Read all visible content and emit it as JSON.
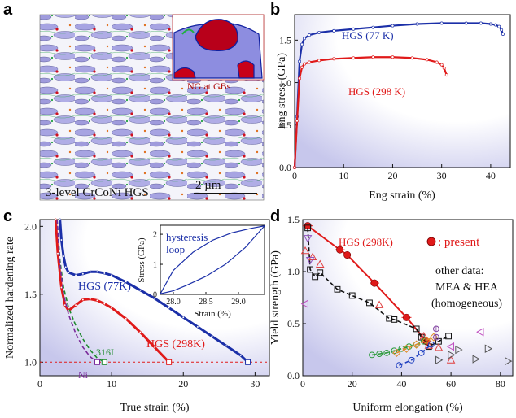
{
  "panels": {
    "a": {
      "label": "a",
      "caption": "3-level CrCoNi HGS",
      "scalebar_label": "2 µm",
      "inset_label": "NG at GBs",
      "colors": {
        "matrix": "#a9a6e2",
        "inset_bg": "#8f8fe0",
        "grain_red": "#c00010",
        "bg": "#f6f6fb"
      }
    },
    "b": {
      "label": "b"
    },
    "c": {
      "label": "c",
      "inset": {
        "label_line1": "hysteresis",
        "label_line2": "loop"
      }
    },
    "d": {
      "label": "d",
      "legend_present": ": present",
      "other_line1": "other data:",
      "other_line2": "MEA & HEA",
      "other_line3": "(homogeneous)"
    }
  },
  "colors": {
    "blue": "#1b2fa8",
    "red": "#e01a1a",
    "bg_fade": "#c9c9ec"
  },
  "chart_data": [
    {
      "id": "b",
      "type": "line",
      "title": "",
      "xlabel": "Eng strain (%)",
      "ylabel": "Eng stress (GPa)",
      "xlim": [
        0,
        44
      ],
      "ylim": [
        0,
        1.8
      ],
      "xticks": [
        0,
        10,
        20,
        30,
        40
      ],
      "yticks": [
        0.0,
        0.5,
        1.0,
        1.5
      ],
      "grid": false,
      "series": [
        {
          "name": "HGS (77 K)",
          "color": "#1b2fa8",
          "x": [
            0,
            0.5,
            1.0,
            1.5,
            2.0,
            3,
            5,
            8,
            12,
            16,
            20,
            25,
            30,
            35,
            38,
            40,
            41,
            41.7,
            42.2,
            42.5
          ],
          "y": [
            0,
            0.6,
            1.25,
            1.45,
            1.52,
            1.56,
            1.59,
            1.61,
            1.63,
            1.65,
            1.67,
            1.69,
            1.7,
            1.7,
            1.7,
            1.69,
            1.68,
            1.66,
            1.62,
            1.57
          ]
        },
        {
          "name": "HGS (298 K)",
          "color": "#e01a1a",
          "x": [
            0,
            0.5,
            1.0,
            1.5,
            2,
            3,
            5,
            8,
            12,
            16,
            20,
            24,
            27,
            29,
            30,
            30.5,
            31
          ],
          "y": [
            0,
            0.55,
            1.05,
            1.18,
            1.22,
            1.24,
            1.26,
            1.28,
            1.29,
            1.3,
            1.3,
            1.29,
            1.27,
            1.24,
            1.21,
            1.17,
            1.09
          ]
        }
      ]
    },
    {
      "id": "c",
      "type": "line",
      "title": "",
      "xlabel": "True strain (%)",
      "ylabel": "Normalized hardening rate",
      "xlim": [
        0,
        32
      ],
      "ylim": [
        0.9,
        2.05
      ],
      "xticks": [
        0,
        10,
        20,
        30
      ],
      "yticks": [
        1.0,
        1.5,
        2.0
      ],
      "reference_line": {
        "y": 1.0,
        "color": "#e01a1a"
      },
      "series": [
        {
          "name": "HGS (77K)",
          "color": "#1b2fa8",
          "x": [
            2.8,
            3.0,
            3.3,
            3.6,
            4.0,
            5,
            6,
            7,
            8,
            9,
            10,
            12,
            14,
            16,
            18,
            20,
            22,
            24,
            26,
            28,
            29
          ],
          "y": [
            2.05,
            1.9,
            1.78,
            1.7,
            1.66,
            1.64,
            1.65,
            1.665,
            1.665,
            1.655,
            1.64,
            1.59,
            1.53,
            1.47,
            1.4,
            1.33,
            1.26,
            1.19,
            1.12,
            1.05,
            1.0
          ]
        },
        {
          "name": "HGS (298K)",
          "color": "#e01a1a",
          "x": [
            2.2,
            2.5,
            3.0,
            3.5,
            4,
            5,
            6,
            7,
            8,
            9,
            10,
            12,
            14,
            16,
            18
          ],
          "y": [
            2.05,
            1.8,
            1.55,
            1.42,
            1.38,
            1.42,
            1.46,
            1.465,
            1.455,
            1.43,
            1.4,
            1.32,
            1.22,
            1.11,
            1.0
          ]
        },
        {
          "name": "316L",
          "color": "#1e8a2e",
          "dashed": true,
          "x": [
            2.4,
            2.8,
            3.3,
            4,
            5,
            6,
            7,
            8,
            9
          ],
          "y": [
            2.05,
            1.75,
            1.55,
            1.4,
            1.27,
            1.17,
            1.09,
            1.03,
            1.0
          ]
        },
        {
          "name": "Ni",
          "color": "#7a2a9a",
          "dashed": true,
          "x": [
            2.4,
            2.8,
            3.3,
            4,
            5,
            6,
            7,
            8
          ],
          "y": [
            2.05,
            1.72,
            1.5,
            1.35,
            1.21,
            1.11,
            1.04,
            1.0
          ]
        }
      ]
    },
    {
      "id": "c_inset",
      "type": "line",
      "title": "",
      "xlabel": "Strain (%)",
      "ylabel": "Stress (GPa)",
      "xlim": [
        27.8,
        29.4
      ],
      "ylim": [
        0,
        2.3
      ],
      "xticks": [
        28.0,
        28.5,
        29.0
      ],
      "yticks": [
        0,
        1,
        2
      ],
      "series": [
        {
          "name": "loading",
          "color": "#1b2fa8",
          "x": [
            27.8,
            28.0,
            28.3,
            28.6,
            28.9,
            29.2,
            29.4
          ],
          "y": [
            0.02,
            0.8,
            1.4,
            1.8,
            2.05,
            2.2,
            2.28
          ]
        },
        {
          "name": "unloading",
          "color": "#1b2fa8",
          "x": [
            29.4,
            29.1,
            28.8,
            28.5,
            28.2,
            28.0,
            27.8
          ],
          "y": [
            2.28,
            1.55,
            1.0,
            0.6,
            0.3,
            0.12,
            0.02
          ]
        }
      ]
    },
    {
      "id": "d",
      "type": "scatter",
      "title": "",
      "xlabel": "Uniform elongation (%)",
      "ylabel": "Yield strength (GPa)",
      "xlim": [
        0,
        85
      ],
      "ylim": [
        0,
        1.5
      ],
      "xticks": [
        0,
        20,
        40,
        60,
        80
      ],
      "yticks": [
        0.0,
        0.5,
        1.0,
        1.5
      ],
      "series": [
        {
          "name": "present (HGS 298K)",
          "color": "#e01a1a",
          "marker": "filled-circle",
          "line": "solid",
          "x": [
            2,
            15,
            18,
            29,
            42,
            50
          ],
          "y": [
            1.44,
            1.21,
            1.16,
            0.89,
            0.56,
            0.33
          ]
        },
        {
          "name": "black line",
          "color": "#111111",
          "marker": "open-square",
          "line": "dashed",
          "x": [
            2,
            3,
            5,
            7,
            14,
            20,
            27,
            35,
            37,
            46,
            48,
            51,
            55,
            59
          ],
          "y": [
            1.42,
            1.02,
            0.95,
            0.99,
            0.83,
            0.77,
            0.7,
            0.55,
            0.54,
            0.45,
            0.37,
            0.28,
            0.33,
            0.38
          ]
        },
        {
          "name": "triangles-up",
          "color": "#e04040",
          "marker": "open-triangle-up",
          "x": [
            1,
            4,
            7,
            31,
            49,
            51,
            55,
            60
          ],
          "y": [
            1.2,
            1.14,
            1.07,
            0.68,
            0.38,
            0.29,
            0.27,
            0.15
          ]
        },
        {
          "name": "triangles-down",
          "color": "#9050c0",
          "marker": "open-triangle-down",
          "x": [
            2,
            3
          ],
          "y": [
            1.32,
            1.11
          ]
        },
        {
          "name": "triangles-left",
          "color": "#c050c0",
          "marker": "open-triangle-left",
          "x": [
            1,
            72,
            60
          ],
          "y": [
            0.69,
            0.42,
            0.28
          ]
        },
        {
          "name": "triangles-right",
          "color": "#555555",
          "marker": "open-triangle-right",
          "x": [
            55,
            63,
            70,
            75,
            83,
            60
          ],
          "y": [
            0.15,
            0.25,
            0.16,
            0.26,
            0.14,
            0.2
          ]
        },
        {
          "name": "green line",
          "color": "#2a9a3a",
          "marker": "open-circle",
          "line": "dashed",
          "x": [
            28,
            31,
            34,
            37,
            40,
            43,
            46,
            49
          ],
          "y": [
            0.2,
            0.21,
            0.22,
            0.24,
            0.26,
            0.28,
            0.3,
            0.33
          ]
        },
        {
          "name": "orange line",
          "color": "#e08a2a",
          "marker": "open-diamond",
          "line": "dashed",
          "x": [
            38,
            42,
            46,
            50,
            53
          ],
          "y": [
            0.22,
            0.26,
            0.3,
            0.34,
            0.37
          ]
        },
        {
          "name": "blue line",
          "color": "#2040c0",
          "marker": "open-circle",
          "line": "dashed",
          "x": [
            39,
            44,
            48,
            52
          ],
          "y": [
            0.1,
            0.15,
            0.22,
            0.3
          ]
        },
        {
          "name": "purple",
          "color": "#8040a0",
          "marker": "crossed-circle",
          "x": [
            54,
            54
          ],
          "y": [
            0.45,
            0.37
          ]
        }
      ]
    }
  ]
}
